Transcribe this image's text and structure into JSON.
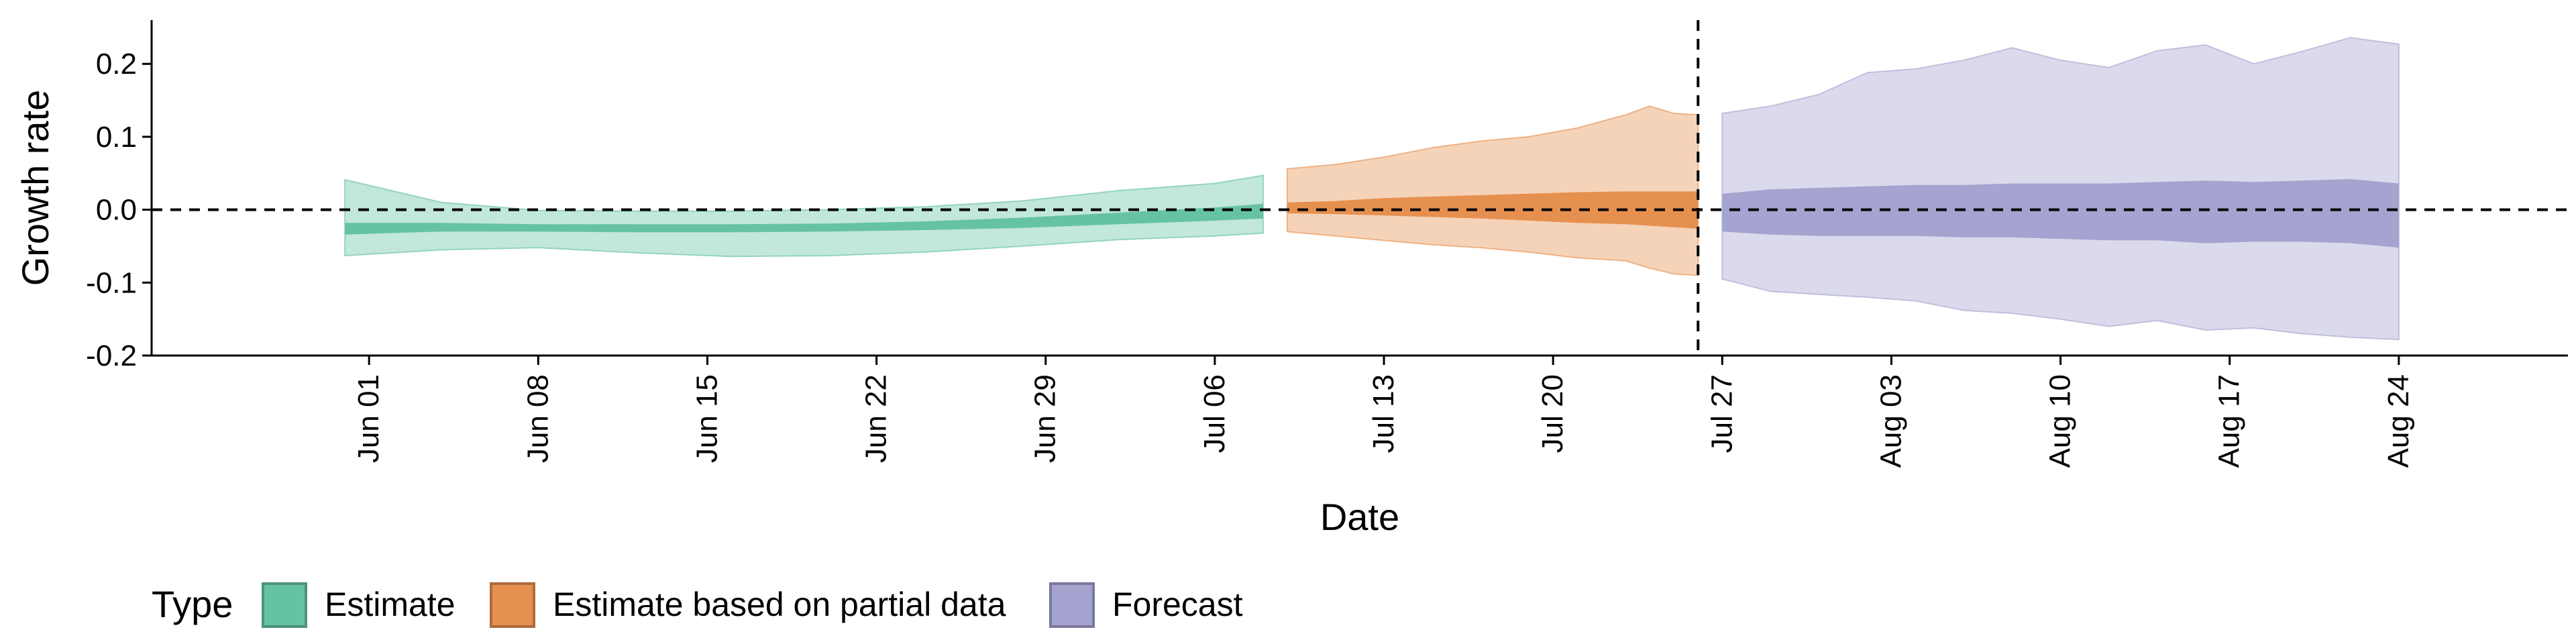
{
  "chart_data": {
    "type": "area",
    "title": "",
    "xlabel": "Date",
    "ylabel": "Growth rate",
    "ylim": [
      -0.2,
      0.26
    ],
    "xlim": [
      "2020-05-23",
      "2020-08-31"
    ],
    "y_ticks": [
      -0.2,
      -0.1,
      0.0,
      0.1,
      0.2
    ],
    "y_tick_labels": [
      "-0.2",
      "-0.1",
      "0.0",
      "0.1",
      "0.2"
    ],
    "x_ticks": [
      "2020-06-01",
      "2020-06-08",
      "2020-06-15",
      "2020-06-22",
      "2020-06-29",
      "2020-07-06",
      "2020-07-13",
      "2020-07-20",
      "2020-07-27",
      "2020-08-03",
      "2020-08-10",
      "2020-08-17",
      "2020-08-24"
    ],
    "x_tick_labels": [
      "Jun 01",
      "Jun 08",
      "Jun 15",
      "Jun 22",
      "Jun 29",
      "Jul 06",
      "Jul 13",
      "Jul 20",
      "Jul 27",
      "Aug 03",
      "Aug 10",
      "Aug 17",
      "Aug 24"
    ],
    "reference_lines": {
      "horizontal_y": 0.0,
      "vertical_date": "2020-07-26",
      "style": "dashed"
    },
    "grid": false,
    "legend": {
      "title": "Type",
      "placement": "bottom-left",
      "entries": [
        "Estimate",
        "Estimate based on partial data",
        "Forecast"
      ]
    },
    "series": [
      {
        "name": "Estimate",
        "color": "#66c2a5",
        "x": [
          "2020-05-31",
          "2020-06-04",
          "2020-06-08",
          "2020-06-12",
          "2020-06-16",
          "2020-06-20",
          "2020-06-24",
          "2020-06-28",
          "2020-07-02",
          "2020-07-06",
          "2020-07-08"
        ],
        "outer_upper": [
          0.041,
          0.01,
          -0.001,
          -0.002,
          -0.002,
          0.0,
          0.004,
          0.012,
          0.026,
          0.036,
          0.047
        ],
        "inner_upper": [
          -0.018,
          -0.018,
          -0.02,
          -0.02,
          -0.02,
          -0.019,
          -0.016,
          -0.011,
          -0.004,
          0.003,
          0.008
        ],
        "inner_lower": [
          -0.034,
          -0.03,
          -0.03,
          -0.031,
          -0.031,
          -0.03,
          -0.028,
          -0.025,
          -0.02,
          -0.015,
          -0.012
        ],
        "outer_lower": [
          -0.063,
          -0.055,
          -0.052,
          -0.059,
          -0.064,
          -0.063,
          -0.058,
          -0.05,
          -0.041,
          -0.036,
          -0.032
        ]
      },
      {
        "name": "Estimate based on partial data",
        "color": "#e6904f",
        "x": [
          "2020-07-09",
          "2020-07-11",
          "2020-07-13",
          "2020-07-15",
          "2020-07-17",
          "2020-07-19",
          "2020-07-21",
          "2020-07-23",
          "2020-07-24",
          "2020-07-25",
          "2020-07-26"
        ],
        "outer_upper": [
          0.056,
          0.062,
          0.072,
          0.085,
          0.094,
          0.1,
          0.112,
          0.13,
          0.142,
          0.132,
          0.13
        ],
        "inner_upper": [
          0.01,
          0.012,
          0.016,
          0.018,
          0.02,
          0.022,
          0.024,
          0.025,
          0.025,
          0.025,
          0.025
        ],
        "inner_lower": [
          -0.005,
          -0.006,
          -0.008,
          -0.01,
          -0.012,
          -0.015,
          -0.018,
          -0.02,
          -0.022,
          -0.024,
          -0.026
        ],
        "outer_lower": [
          -0.03,
          -0.036,
          -0.042,
          -0.048,
          -0.052,
          -0.058,
          -0.066,
          -0.07,
          -0.08,
          -0.088,
          -0.09
        ]
      },
      {
        "name": "Forecast",
        "color": "#a5a3cf",
        "x": [
          "2020-07-27",
          "2020-07-29",
          "2020-07-31",
          "2020-08-02",
          "2020-08-04",
          "2020-08-06",
          "2020-08-08",
          "2020-08-10",
          "2020-08-12",
          "2020-08-14",
          "2020-08-16",
          "2020-08-18",
          "2020-08-20",
          "2020-08-22",
          "2020-08-24"
        ],
        "outer_upper": [
          0.132,
          0.142,
          0.158,
          0.188,
          0.193,
          0.205,
          0.222,
          0.205,
          0.195,
          0.218,
          0.226,
          0.2,
          0.217,
          0.236,
          0.227
        ],
        "inner_upper": [
          0.022,
          0.028,
          0.03,
          0.032,
          0.034,
          0.034,
          0.036,
          0.036,
          0.036,
          0.038,
          0.04,
          0.038,
          0.04,
          0.042,
          0.036
        ],
        "inner_lower": [
          -0.03,
          -0.034,
          -0.036,
          -0.036,
          -0.036,
          -0.038,
          -0.038,
          -0.04,
          -0.042,
          -0.042,
          -0.046,
          -0.044,
          -0.044,
          -0.046,
          -0.052
        ],
        "outer_lower": [
          -0.095,
          -0.112,
          -0.116,
          -0.12,
          -0.125,
          -0.138,
          -0.142,
          -0.15,
          -0.16,
          -0.152,
          -0.165,
          -0.162,
          -0.17,
          -0.175,
          -0.178
        ]
      }
    ]
  }
}
